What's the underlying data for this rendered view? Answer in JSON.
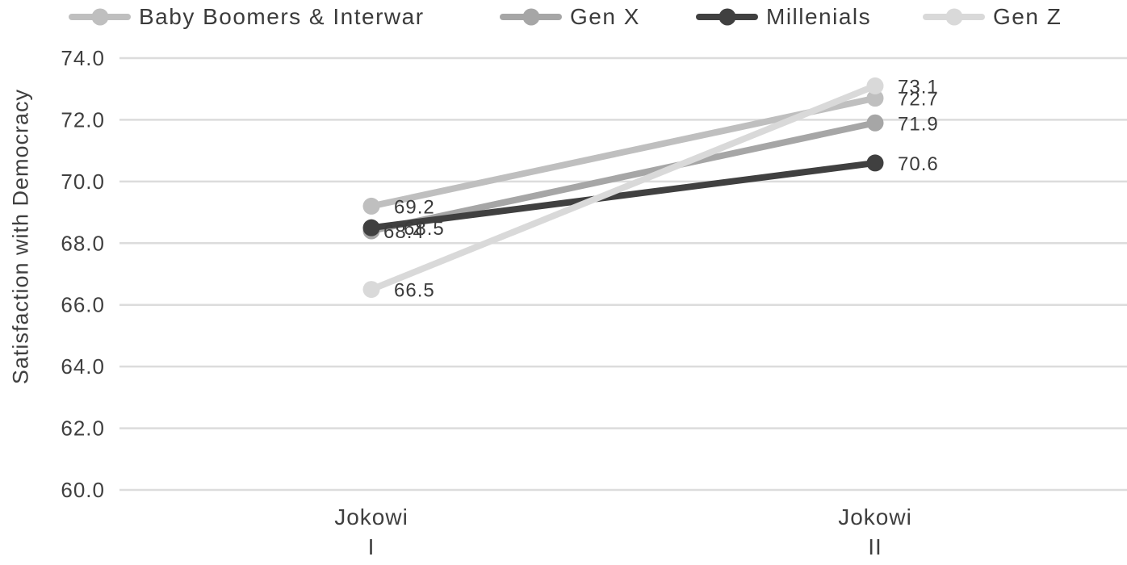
{
  "chart_data": {
    "type": "line",
    "title": "",
    "xlabel": "",
    "ylabel": "Satisfaction with Democracy",
    "ylim": [
      60,
      74
    ],
    "yticks": [
      "74.0",
      "72.0",
      "70.0",
      "68.0",
      "66.0",
      "64.0",
      "62.0",
      "60.0"
    ],
    "categories": [
      "Jokowi\nI",
      "Jokowi\nII"
    ],
    "grid": "horizontal gridlines on, no vertical gridlines",
    "legend_position": "top",
    "series": [
      {
        "name": "Baby Boomers & Interwar",
        "color": "#bfbfbf",
        "values": [
          69.2,
          72.7
        ],
        "labels": [
          "69.2",
          "72.7"
        ]
      },
      {
        "name": "Gen X",
        "color": "#a6a6a6",
        "values": [
          68.4,
          71.9
        ],
        "labels": [
          "68.4",
          "71.9"
        ]
      },
      {
        "name": "Millenials",
        "color": "#404040",
        "values": [
          68.5,
          70.6
        ],
        "labels": [
          "68.5",
          "70.6"
        ]
      },
      {
        "name": "Gen Z",
        "color": "#d9d9d9",
        "values": [
          66.5,
          73.1
        ],
        "labels": [
          "66.5",
          "73.1"
        ]
      }
    ],
    "colors": {
      "gridline": "#dcdcdc",
      "tick_text": "#3f3f3f",
      "data_label_text": "#3b3b3b",
      "background": "#ffffff"
    }
  }
}
